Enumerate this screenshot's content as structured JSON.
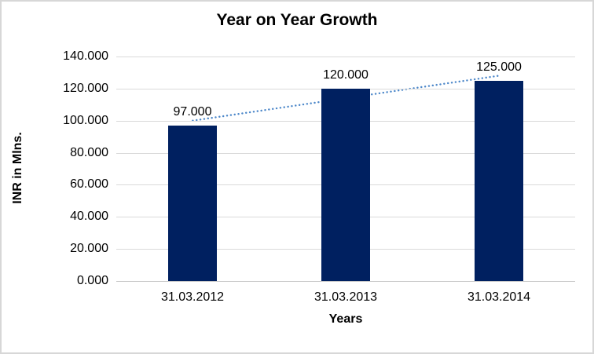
{
  "chart_data": {
    "type": "bar",
    "title": "Year on Year Growth",
    "xlabel": "Years",
    "ylabel": "INR in Mlns.",
    "categories": [
      "31.03.2012",
      "31.03.2013",
      "31.03.2014"
    ],
    "values": [
      97,
      120,
      125
    ],
    "value_labels": [
      "97.000",
      "120.000",
      "125.000"
    ],
    "ylim": [
      0,
      140
    ],
    "ytick_step": 20,
    "ytick_labels": [
      "0.000",
      "20.000",
      "40.000",
      "60.000",
      "80.000",
      "100.000",
      "120.000",
      "140.000"
    ],
    "grid": true,
    "legend_position": "none",
    "trendline": {
      "type": "linear",
      "style": "dotted",
      "color": "#4c87c9"
    },
    "colors": {
      "bar": "#002060",
      "gridline": "#d9d9d9",
      "axis_line": "#c6c6c6",
      "text": "#000000",
      "border": "#d7d7d7",
      "background": "#ffffff"
    }
  }
}
